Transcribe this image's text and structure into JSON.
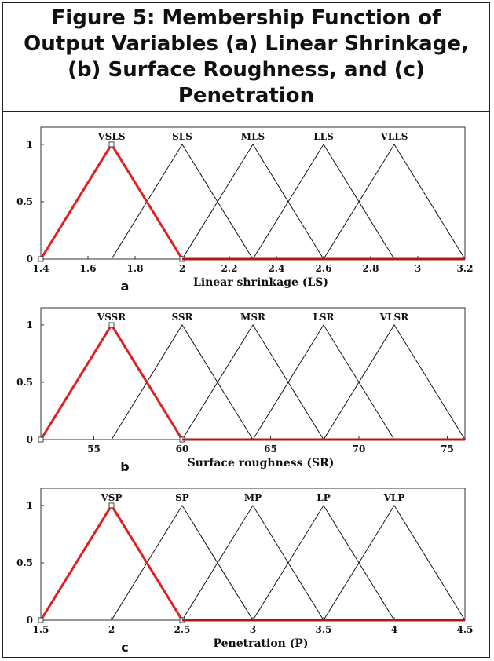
{
  "title": "Figure 5: Membership Function of Output Variables (a) Linear Shrinkage, (b) Surface Roughness, and (c) Penetration",
  "colors": {
    "active": "#e02020",
    "line": "#111111"
  },
  "chart_data": [
    {
      "type": "line",
      "panel_label": "a",
      "xlabel": "Linear shrinkage (LS)",
      "xlim": [
        1.4,
        3.2
      ],
      "ylim": [
        0,
        1.15
      ],
      "xticks": [
        "1.4",
        "1.6",
        "1.8",
        "2",
        "2.2",
        "2.4",
        "2.6",
        "2.8",
        "3",
        "3.2"
      ],
      "xtick_values": [
        1.4,
        1.6,
        1.8,
        2.0,
        2.2,
        2.4,
        2.6,
        2.8,
        3.0,
        3.2
      ],
      "yticks": [
        "0",
        "0.5",
        "1"
      ],
      "ytick_values": [
        0,
        0.5,
        1
      ],
      "series": [
        {
          "name": "VSLS",
          "x": [
            1.4,
            1.7,
            2.0
          ],
          "y": [
            0,
            1,
            0
          ],
          "highlight": true
        },
        {
          "name": "SLS",
          "x": [
            1.7,
            2.0,
            2.3
          ],
          "y": [
            0,
            1,
            0
          ]
        },
        {
          "name": "MLS",
          "x": [
            2.0,
            2.3,
            2.6
          ],
          "y": [
            0,
            1,
            0
          ]
        },
        {
          "name": "LLS",
          "x": [
            2.3,
            2.6,
            2.9
          ],
          "y": [
            0,
            1,
            0
          ]
        },
        {
          "name": "VLLS",
          "x": [
            2.6,
            2.9,
            3.2
          ],
          "y": [
            0,
            1,
            0
          ]
        }
      ]
    },
    {
      "type": "line",
      "panel_label": "b",
      "xlabel": "Surface roughness (SR)",
      "xlim": [
        52,
        76
      ],
      "ylim": [
        0,
        1.15
      ],
      "xticks": [
        "55",
        "60",
        "65",
        "70",
        "75"
      ],
      "xtick_values": [
        55,
        60,
        65,
        70,
        75
      ],
      "yticks": [
        "0",
        "0.5",
        "1"
      ],
      "ytick_values": [
        0,
        0.5,
        1
      ],
      "series": [
        {
          "name": "VSSR",
          "x": [
            52,
            56,
            60
          ],
          "y": [
            0,
            1,
            0
          ],
          "highlight": true
        },
        {
          "name": "SSR",
          "x": [
            56,
            60,
            64
          ],
          "y": [
            0,
            1,
            0
          ]
        },
        {
          "name": "MSR",
          "x": [
            60,
            64,
            68
          ],
          "y": [
            0,
            1,
            0
          ]
        },
        {
          "name": "LSR",
          "x": [
            64,
            68,
            72
          ],
          "y": [
            0,
            1,
            0
          ]
        },
        {
          "name": "VLSR",
          "x": [
            68,
            72,
            76
          ],
          "y": [
            0,
            1,
            0
          ]
        }
      ]
    },
    {
      "type": "line",
      "panel_label": "c",
      "xlabel": "Penetration (P)",
      "xlim": [
        1.5,
        4.5
      ],
      "ylim": [
        0,
        1.15
      ],
      "xticks": [
        "1.5",
        "2",
        "2.5",
        "3",
        "3.5",
        "4",
        "4.5"
      ],
      "xtick_values": [
        1.5,
        2.0,
        2.5,
        3.0,
        3.5,
        4.0,
        4.5
      ],
      "yticks": [
        "0",
        "0.5",
        "1"
      ],
      "ytick_values": [
        0,
        0.5,
        1
      ],
      "series": [
        {
          "name": "VSP",
          "x": [
            1.5,
            2.0,
            2.5
          ],
          "y": [
            0,
            1,
            0
          ],
          "highlight": true
        },
        {
          "name": "SP",
          "x": [
            2.0,
            2.5,
            3.0
          ],
          "y": [
            0,
            1,
            0
          ]
        },
        {
          "name": "MP",
          "x": [
            2.5,
            3.0,
            3.5
          ],
          "y": [
            0,
            1,
            0
          ]
        },
        {
          "name": "LP",
          "x": [
            3.0,
            3.5,
            4.0
          ],
          "y": [
            0,
            1,
            0
          ]
        },
        {
          "name": "VLP",
          "x": [
            3.5,
            4.0,
            4.5
          ],
          "y": [
            0,
            1,
            0
          ]
        }
      ]
    }
  ]
}
